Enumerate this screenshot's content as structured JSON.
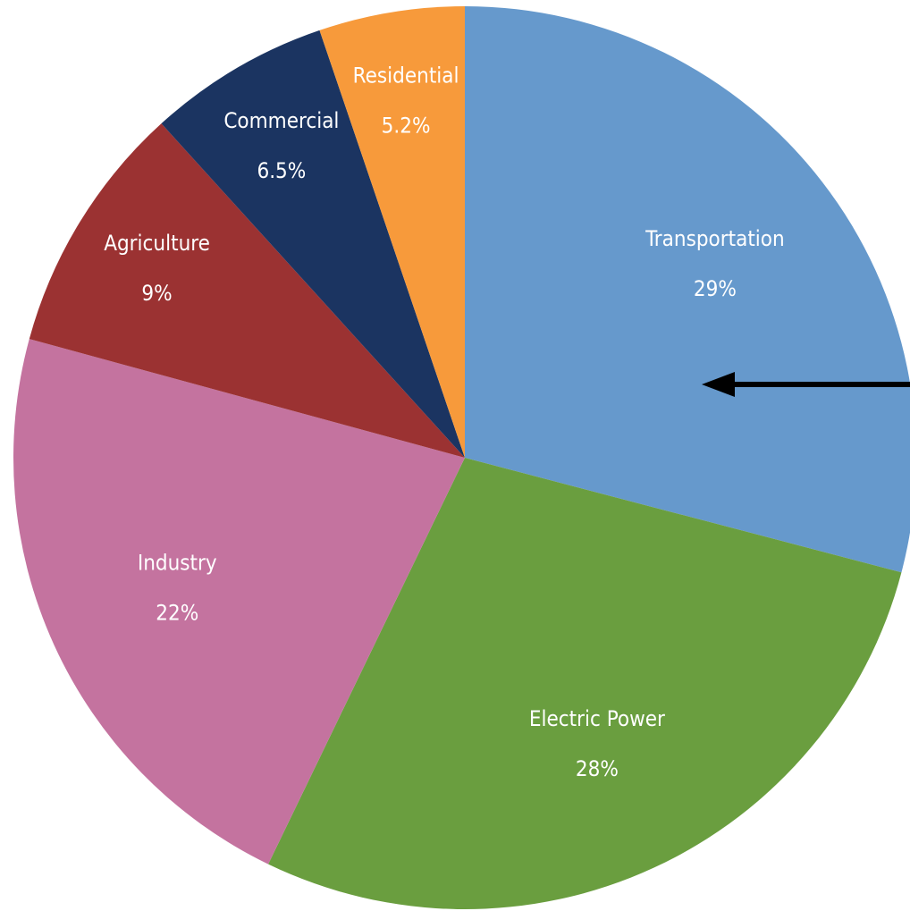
{
  "chart_data": {
    "type": "pie",
    "categories": [
      "Transportation",
      "Electric Power",
      "Industry",
      "Agriculture",
      "Commercial",
      "Residential"
    ],
    "values": [
      29,
      28,
      22,
      9,
      6.5,
      5.2
    ],
    "value_labels": [
      "29%",
      "28%",
      "22%",
      "9%",
      "6.5%",
      "5.2%"
    ],
    "colors": [
      "#6699cc",
      "#6a9e3f",
      "#c4739f",
      "#9b3232",
      "#1b3461",
      "#f79a3b"
    ]
  }
}
